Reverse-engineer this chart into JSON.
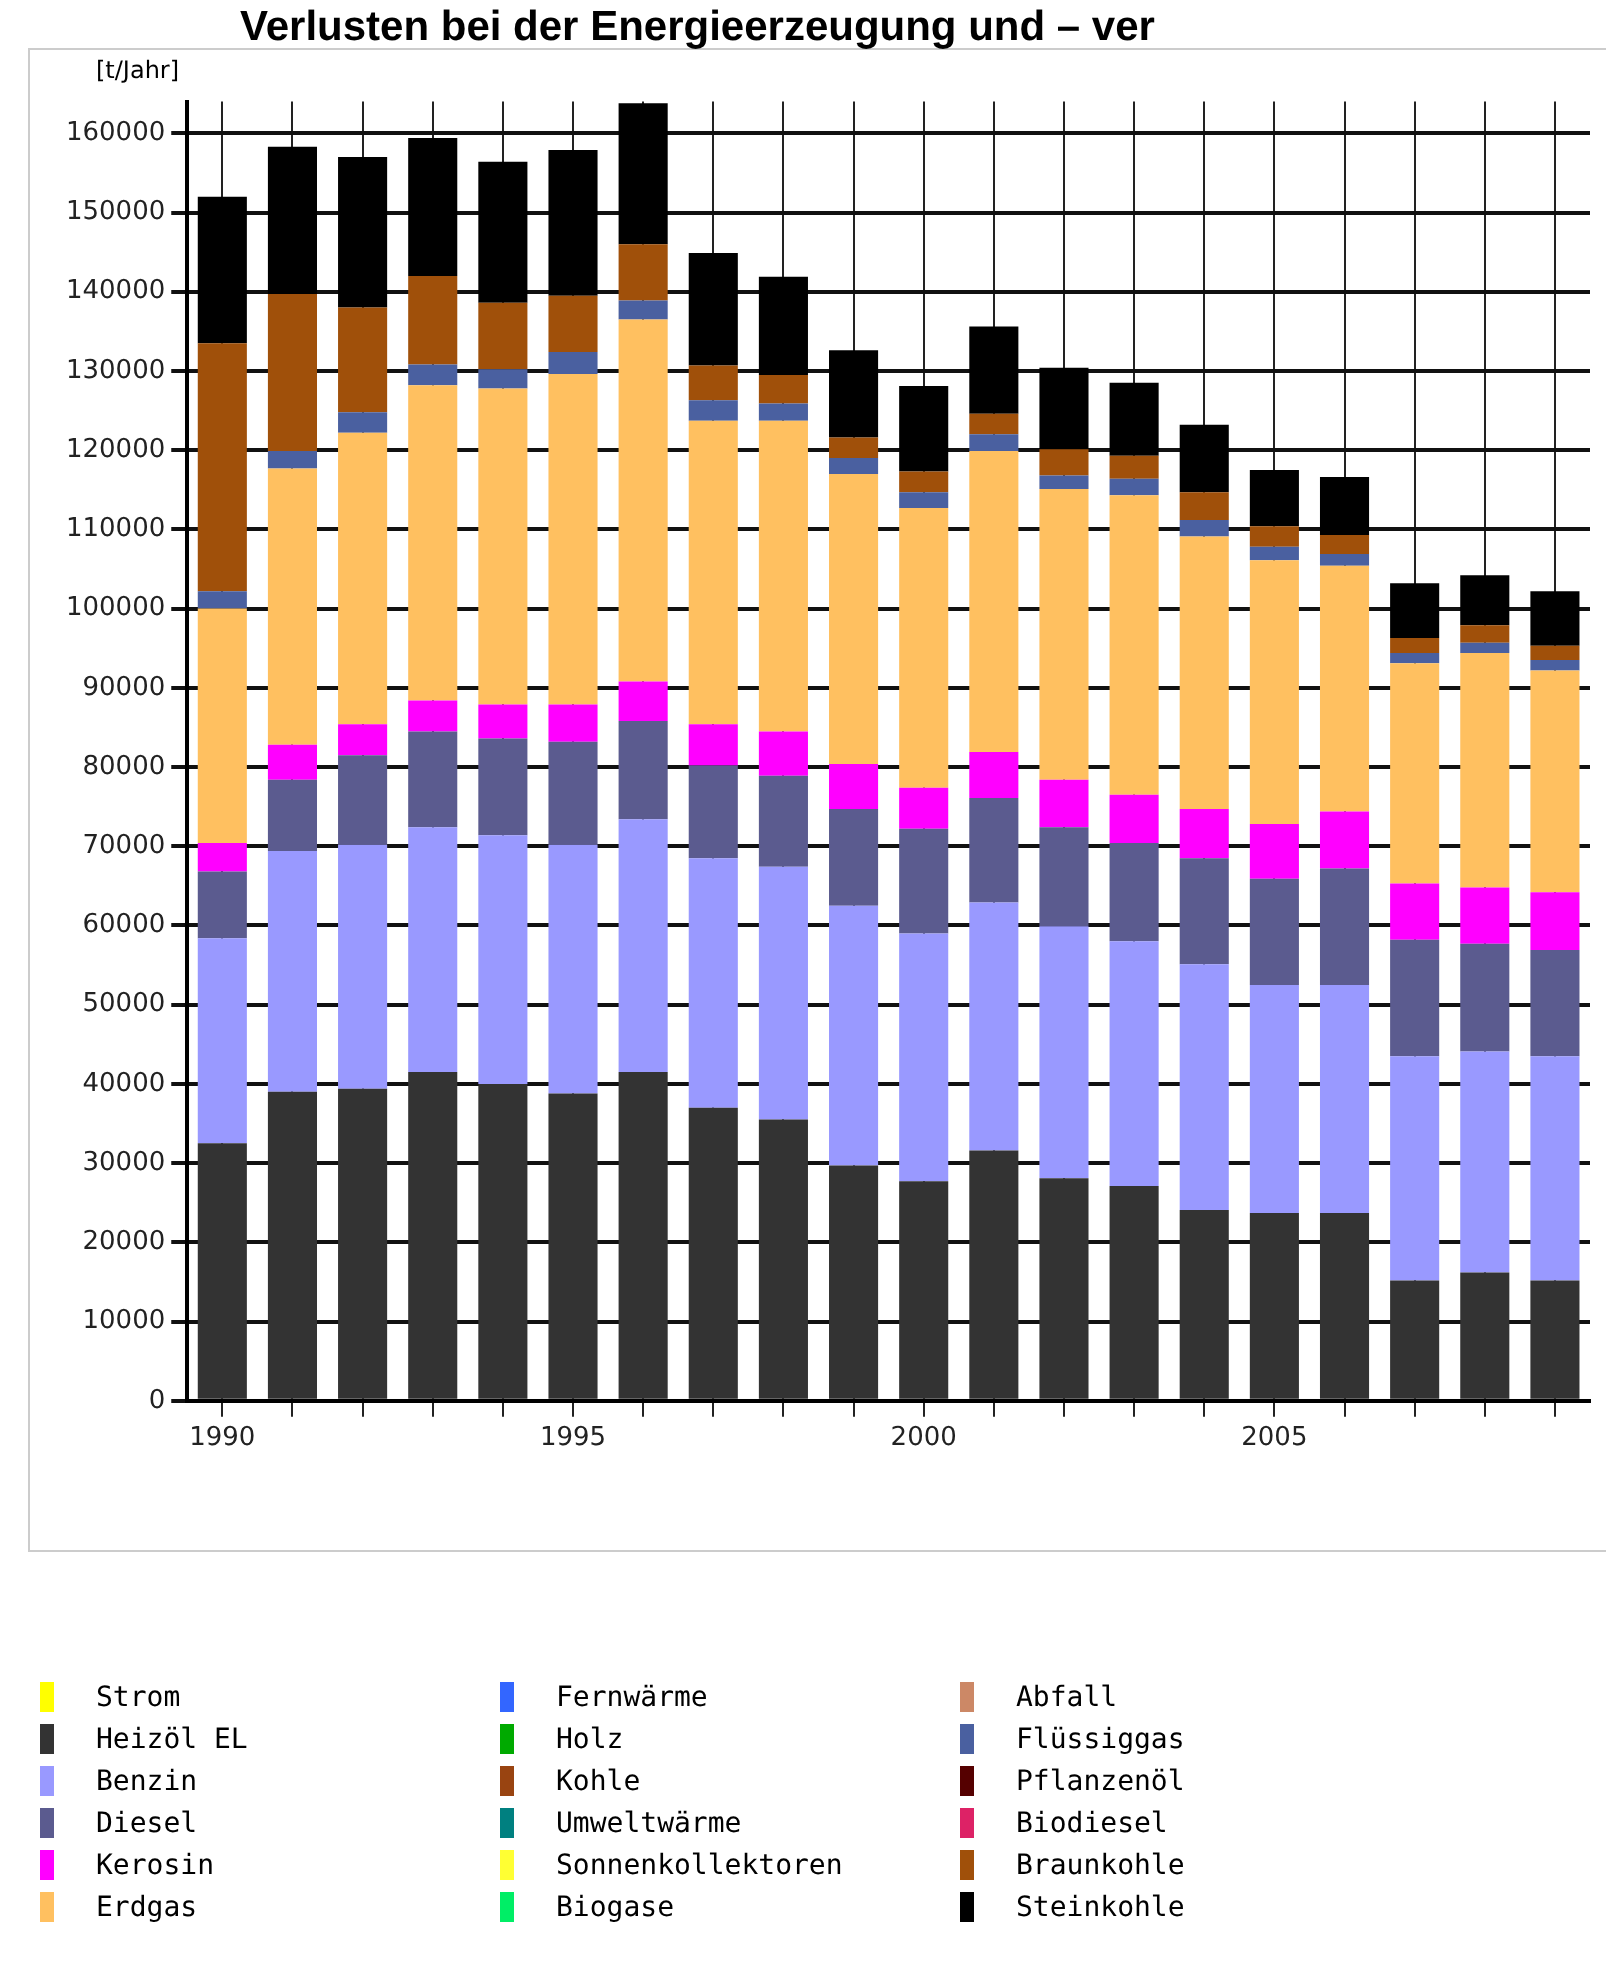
{
  "chart_data": {
    "type": "bar",
    "title": "Verlusten bei der Energieerzeugung und – ver",
    "ylabel": "[t/Jahr]",
    "stacked": true,
    "grid": true,
    "legend": "bottom",
    "ylim": [
      0,
      164000
    ],
    "yticks": [
      0,
      10000,
      20000,
      30000,
      40000,
      50000,
      60000,
      70000,
      80000,
      90000,
      100000,
      110000,
      120000,
      130000,
      140000,
      150000,
      160000
    ],
    "categories": [
      "1990",
      null,
      null,
      null,
      null,
      "1995",
      null,
      null,
      null,
      null,
      "2000",
      null,
      null,
      null,
      null,
      "2005",
      null,
      null,
      null,
      null
    ],
    "series": [
      {
        "name": "Strom",
        "color": "#ffff00",
        "values": [
          0,
          0,
          0,
          0,
          0,
          0,
          0,
          0,
          0,
          0,
          0,
          0,
          0,
          0,
          0,
          0,
          0,
          0,
          0,
          0
        ]
      },
      {
        "name": "Heizöl EL",
        "color": "#333333",
        "values": [
          32500,
          39000,
          39400,
          41500,
          40000,
          38800,
          41500,
          37000,
          35500,
          29700,
          27700,
          31600,
          28100,
          27100,
          24100,
          23700,
          23700,
          15200,
          16200,
          15200
        ]
      },
      {
        "name": "Benzin",
        "color": "#9999ff",
        "values": [
          25900,
          30400,
          30800,
          30900,
          31400,
          31400,
          31900,
          31500,
          31900,
          32800,
          31300,
          31300,
          31800,
          30900,
          31000,
          28800,
          28800,
          28300,
          27900,
          28300
        ]
      },
      {
        "name": "Diesel",
        "color": "#5b5b8f",
        "values": [
          8400,
          9000,
          11300,
          12100,
          12200,
          13000,
          12400,
          11700,
          11500,
          12200,
          13200,
          13200,
          12500,
          12400,
          13400,
          13400,
          14700,
          14700,
          13600,
          13400
        ]
      },
      {
        "name": "Kerosin",
        "color": "#ff00ff",
        "values": [
          3600,
          4400,
          3900,
          3900,
          4300,
          4700,
          5000,
          5200,
          5600,
          5700,
          5200,
          5800,
          6000,
          6100,
          6200,
          6900,
          7200,
          7100,
          7100,
          7300
        ]
      },
      {
        "name": "Erdgas",
        "color": "#ffc060",
        "values": [
          29600,
          34900,
          36800,
          39800,
          39900,
          41700,
          45700,
          38300,
          39200,
          36600,
          35300,
          38000,
          36700,
          37800,
          34400,
          33300,
          31000,
          27800,
          29600,
          28000
        ]
      },
      {
        "name": "Fernwärme",
        "color": "#3366ff",
        "values": [
          0,
          0,
          0,
          0,
          0,
          0,
          0,
          0,
          0,
          0,
          0,
          0,
          0,
          0,
          0,
          0,
          0,
          0,
          0,
          0
        ]
      },
      {
        "name": "Holz",
        "color": "#00aa00",
        "values": [
          0,
          0,
          0,
          0,
          0,
          0,
          0,
          0,
          0,
          0,
          0,
          0,
          0,
          0,
          0,
          0,
          0,
          0,
          0,
          0
        ]
      },
      {
        "name": "Kohle",
        "color": "#994411",
        "values": [
          0,
          0,
          0,
          0,
          0,
          0,
          0,
          0,
          0,
          0,
          0,
          0,
          0,
          0,
          0,
          0,
          0,
          0,
          0,
          0
        ]
      },
      {
        "name": "Umweltwärme",
        "color": "#008080",
        "values": [
          0,
          0,
          0,
          0,
          0,
          0,
          0,
          0,
          0,
          0,
          0,
          0,
          0,
          0,
          0,
          0,
          0,
          0,
          0,
          0
        ]
      },
      {
        "name": "Sonnenkollektoren",
        "color": "#ffff33",
        "values": [
          0,
          0,
          0,
          0,
          0,
          0,
          0,
          0,
          0,
          0,
          0,
          0,
          0,
          0,
          0,
          0,
          0,
          0,
          0,
          0
        ]
      },
      {
        "name": "Biogase",
        "color": "#00ee66",
        "values": [
          0,
          0,
          0,
          0,
          0,
          0,
          0,
          0,
          0,
          0,
          0,
          0,
          0,
          0,
          0,
          0,
          0,
          0,
          0,
          0
        ]
      },
      {
        "name": "Abfall",
        "color": "#cc8866",
        "values": [
          0,
          0,
          0,
          0,
          0,
          0,
          0,
          0,
          0,
          0,
          0,
          0,
          0,
          0,
          0,
          0,
          0,
          0,
          0,
          0
        ]
      },
      {
        "name": "Flüssiggas",
        "color": "#4a60a0",
        "values": [
          2200,
          2200,
          2600,
          2600,
          2400,
          2800,
          2400,
          2600,
          2200,
          2000,
          2000,
          2100,
          1700,
          2100,
          2100,
          1700,
          1500,
          1300,
          1300,
          1300
        ]
      },
      {
        "name": "Pflanzenöl",
        "color": "#550000",
        "values": [
          0,
          0,
          0,
          0,
          0,
          0,
          0,
          0,
          0,
          0,
          0,
          0,
          0,
          0,
          0,
          0,
          0,
          0,
          0,
          0
        ]
      },
      {
        "name": "Biodiesel",
        "color": "#dd2266",
        "values": [
          0,
          0,
          0,
          0,
          0,
          0,
          0,
          0,
          0,
          0,
          0,
          0,
          0,
          0,
          0,
          0,
          0,
          0,
          0,
          0
        ]
      },
      {
        "name": "Braunkohle",
        "color": "#a0500a",
        "values": [
          31300,
          19800,
          13200,
          11200,
          8400,
          7100,
          7100,
          4400,
          3600,
          2600,
          2600,
          2600,
          3300,
          2900,
          3500,
          2600,
          2400,
          1900,
          2200,
          1800
        ]
      },
      {
        "name": "Steinkohle",
        "color": "#000000",
        "values": [
          18500,
          18600,
          19000,
          17400,
          17800,
          18400,
          17800,
          14200,
          12400,
          11000,
          10800,
          11000,
          10300,
          9200,
          8500,
          7100,
          7300,
          6900,
          6300,
          6900
        ]
      }
    ]
  }
}
